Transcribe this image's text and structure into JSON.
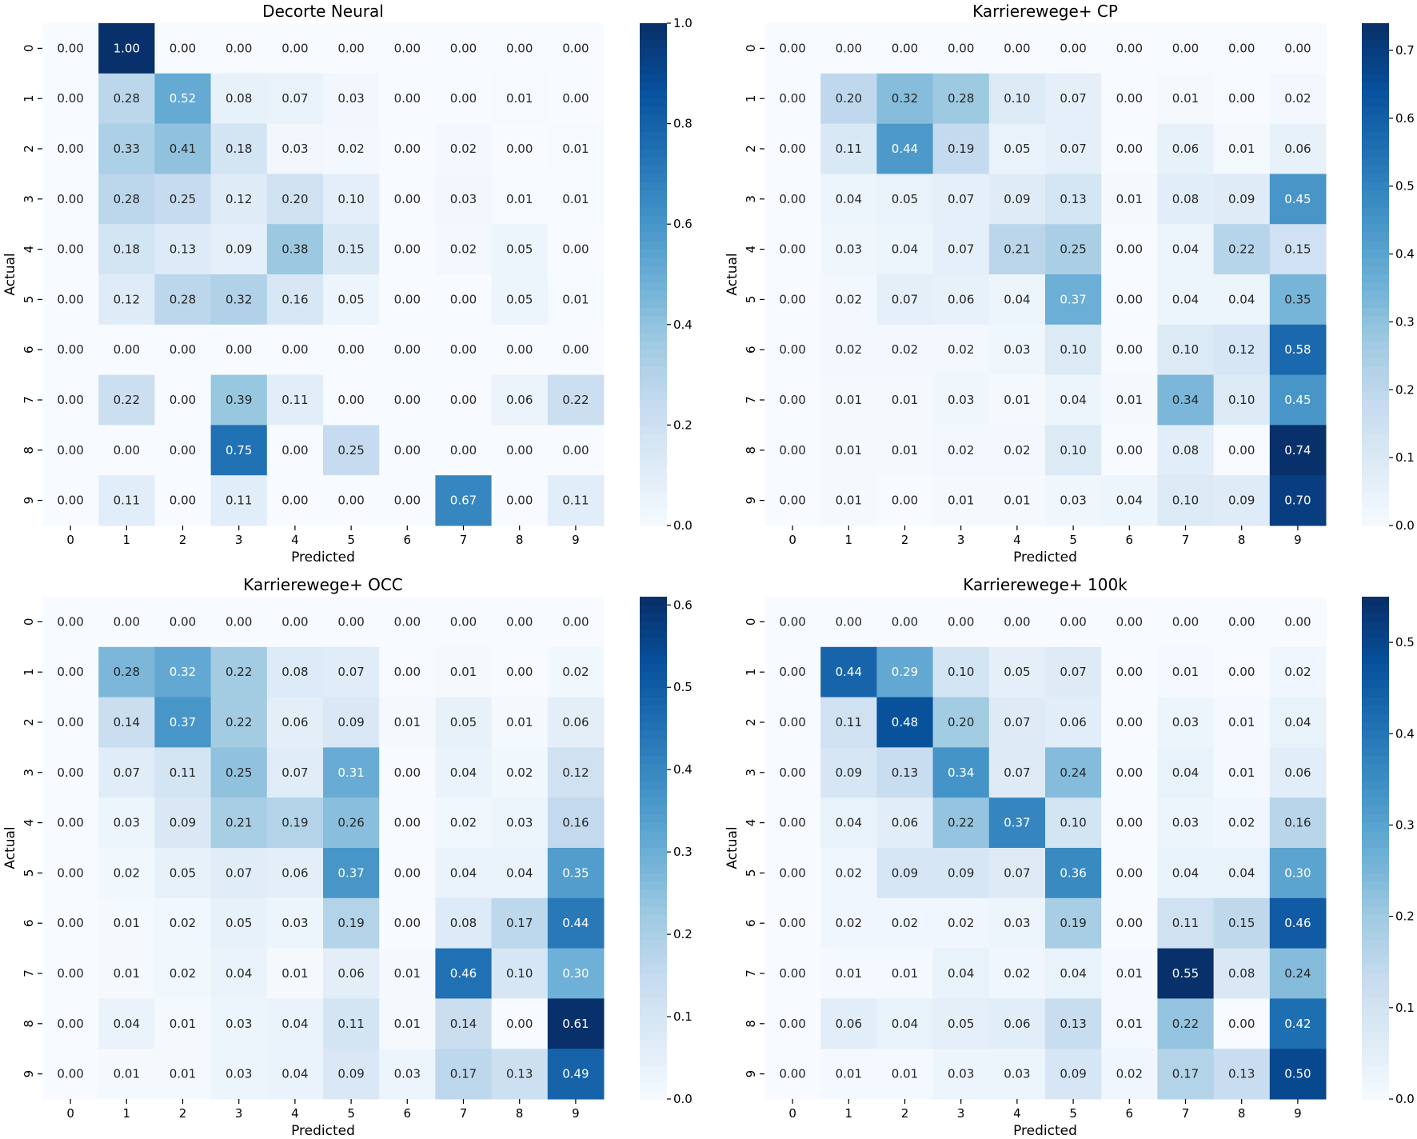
{
  "chart_data": [
    {
      "type": "heatmap",
      "title": "Decorte Neural",
      "xlabel": "Predicted",
      "ylabel": "Actual",
      "x_ticks": [
        "0",
        "1",
        "2",
        "3",
        "4",
        "5",
        "6",
        "7",
        "8",
        "9"
      ],
      "y_ticks": [
        "0",
        "1",
        "2",
        "3",
        "4",
        "5",
        "6",
        "7",
        "8",
        "9"
      ],
      "colorbar": {
        "range": [
          0,
          1.0
        ],
        "ticks": [
          "0.0",
          "0.2",
          "0.4",
          "0.6",
          "0.8",
          "1.0"
        ]
      },
      "values": [
        [
          0.0,
          1.0,
          0.0,
          0.0,
          0.0,
          0.0,
          0.0,
          0.0,
          0.0,
          0.0
        ],
        [
          0.0,
          0.28,
          0.52,
          0.08,
          0.07,
          0.03,
          0.0,
          0.0,
          0.01,
          0.0
        ],
        [
          0.0,
          0.33,
          0.41,
          0.18,
          0.03,
          0.02,
          0.0,
          0.02,
          0.0,
          0.01
        ],
        [
          0.0,
          0.28,
          0.25,
          0.12,
          0.2,
          0.1,
          0.0,
          0.03,
          0.01,
          0.01
        ],
        [
          0.0,
          0.18,
          0.13,
          0.09,
          0.38,
          0.15,
          0.0,
          0.02,
          0.05,
          0.0
        ],
        [
          0.0,
          0.12,
          0.28,
          0.32,
          0.16,
          0.05,
          0.0,
          0.0,
          0.05,
          0.01
        ],
        [
          0.0,
          0.0,
          0.0,
          0.0,
          0.0,
          0.0,
          0.0,
          0.0,
          0.0,
          0.0
        ],
        [
          0.0,
          0.22,
          0.0,
          0.39,
          0.11,
          0.0,
          0.0,
          0.0,
          0.06,
          0.22
        ],
        [
          0.0,
          0.0,
          0.0,
          0.75,
          0.0,
          0.25,
          0.0,
          0.0,
          0.0,
          0.0
        ],
        [
          0.0,
          0.11,
          0.0,
          0.11,
          0.0,
          0.0,
          0.0,
          0.67,
          0.0,
          0.11
        ]
      ]
    },
    {
      "type": "heatmap",
      "title": "Karrierewege+ CP",
      "xlabel": "Predicted",
      "ylabel": "Actual",
      "x_ticks": [
        "0",
        "1",
        "2",
        "3",
        "4",
        "5",
        "6",
        "7",
        "8",
        "9"
      ],
      "y_ticks": [
        "0",
        "1",
        "2",
        "3",
        "4",
        "5",
        "6",
        "7",
        "8",
        "9"
      ],
      "colorbar": {
        "range": [
          0,
          0.74
        ],
        "ticks": [
          "0.0",
          "0.1",
          "0.2",
          "0.3",
          "0.4",
          "0.5",
          "0.6",
          "0.7"
        ]
      },
      "values": [
        [
          0.0,
          0.0,
          0.0,
          0.0,
          0.0,
          0.0,
          0.0,
          0.0,
          0.0,
          0.0
        ],
        [
          0.0,
          0.2,
          0.32,
          0.28,
          0.1,
          0.07,
          0.0,
          0.01,
          0.0,
          0.02
        ],
        [
          0.0,
          0.11,
          0.44,
          0.19,
          0.05,
          0.07,
          0.0,
          0.06,
          0.01,
          0.06
        ],
        [
          0.0,
          0.04,
          0.05,
          0.07,
          0.09,
          0.13,
          0.01,
          0.08,
          0.09,
          0.45
        ],
        [
          0.0,
          0.03,
          0.04,
          0.07,
          0.21,
          0.25,
          0.0,
          0.04,
          0.22,
          0.15
        ],
        [
          0.0,
          0.02,
          0.07,
          0.06,
          0.04,
          0.37,
          0.0,
          0.04,
          0.04,
          0.35
        ],
        [
          0.0,
          0.02,
          0.02,
          0.02,
          0.03,
          0.1,
          0.0,
          0.1,
          0.12,
          0.58
        ],
        [
          0.0,
          0.01,
          0.01,
          0.03,
          0.01,
          0.04,
          0.01,
          0.34,
          0.1,
          0.45
        ],
        [
          0.0,
          0.01,
          0.01,
          0.02,
          0.02,
          0.1,
          0.0,
          0.08,
          0.0,
          0.74
        ],
        [
          0.0,
          0.01,
          0.0,
          0.01,
          0.01,
          0.03,
          0.04,
          0.1,
          0.09,
          0.7
        ]
      ]
    },
    {
      "type": "heatmap",
      "title": "Karrierewege+ OCC",
      "xlabel": "Predicted",
      "ylabel": "Actual",
      "x_ticks": [
        "0",
        "1",
        "2",
        "3",
        "4",
        "5",
        "6",
        "7",
        "8",
        "9"
      ],
      "y_ticks": [
        "0",
        "1",
        "2",
        "3",
        "4",
        "5",
        "6",
        "7",
        "8",
        "9"
      ],
      "colorbar": {
        "range": [
          0,
          0.61
        ],
        "ticks": [
          "0.0",
          "0.1",
          "0.2",
          "0.3",
          "0.4",
          "0.5",
          "0.6"
        ]
      },
      "values": [
        [
          0.0,
          0.0,
          0.0,
          0.0,
          0.0,
          0.0,
          0.0,
          0.0,
          0.0,
          0.0
        ],
        [
          0.0,
          0.28,
          0.32,
          0.22,
          0.08,
          0.07,
          0.0,
          0.01,
          0.0,
          0.02
        ],
        [
          0.0,
          0.14,
          0.37,
          0.22,
          0.06,
          0.09,
          0.01,
          0.05,
          0.01,
          0.06
        ],
        [
          0.0,
          0.07,
          0.11,
          0.25,
          0.07,
          0.31,
          0.0,
          0.04,
          0.02,
          0.12
        ],
        [
          0.0,
          0.03,
          0.09,
          0.21,
          0.19,
          0.26,
          0.0,
          0.02,
          0.03,
          0.16
        ],
        [
          0.0,
          0.02,
          0.05,
          0.07,
          0.06,
          0.37,
          0.0,
          0.04,
          0.04,
          0.35
        ],
        [
          0.0,
          0.01,
          0.02,
          0.05,
          0.03,
          0.19,
          0.0,
          0.08,
          0.17,
          0.44
        ],
        [
          0.0,
          0.01,
          0.02,
          0.04,
          0.01,
          0.06,
          0.01,
          0.46,
          0.1,
          0.3
        ],
        [
          0.0,
          0.04,
          0.01,
          0.03,
          0.04,
          0.11,
          0.01,
          0.14,
          0.0,
          0.61
        ],
        [
          0.0,
          0.01,
          0.01,
          0.03,
          0.04,
          0.09,
          0.03,
          0.17,
          0.13,
          0.49
        ]
      ]
    },
    {
      "type": "heatmap",
      "title": "Karrierewege+ 100k",
      "xlabel": "Predicted",
      "ylabel": "Actual",
      "x_ticks": [
        "0",
        "1",
        "2",
        "3",
        "4",
        "5",
        "6",
        "7",
        "8",
        "9"
      ],
      "y_ticks": [
        "0",
        "1",
        "2",
        "3",
        "4",
        "5",
        "6",
        "7",
        "8",
        "9"
      ],
      "colorbar": {
        "range": [
          0,
          0.55
        ],
        "ticks": [
          "0.0",
          "0.1",
          "0.2",
          "0.3",
          "0.4",
          "0.5"
        ]
      },
      "values": [
        [
          0.0,
          0.0,
          0.0,
          0.0,
          0.0,
          0.0,
          0.0,
          0.0,
          0.0,
          0.0
        ],
        [
          0.0,
          0.44,
          0.29,
          0.1,
          0.05,
          0.07,
          0.0,
          0.01,
          0.0,
          0.02
        ],
        [
          0.0,
          0.11,
          0.48,
          0.2,
          0.07,
          0.06,
          0.0,
          0.03,
          0.01,
          0.04
        ],
        [
          0.0,
          0.09,
          0.13,
          0.34,
          0.07,
          0.24,
          0.0,
          0.04,
          0.01,
          0.06
        ],
        [
          0.0,
          0.04,
          0.06,
          0.22,
          0.37,
          0.1,
          0.0,
          0.03,
          0.02,
          0.16
        ],
        [
          0.0,
          0.02,
          0.09,
          0.09,
          0.07,
          0.36,
          0.0,
          0.04,
          0.04,
          0.3
        ],
        [
          0.0,
          0.02,
          0.02,
          0.02,
          0.03,
          0.19,
          0.0,
          0.11,
          0.15,
          0.46
        ],
        [
          0.0,
          0.01,
          0.01,
          0.04,
          0.02,
          0.04,
          0.01,
          0.55,
          0.08,
          0.24
        ],
        [
          0.0,
          0.06,
          0.04,
          0.05,
          0.06,
          0.13,
          0.01,
          0.22,
          0.0,
          0.42
        ],
        [
          0.0,
          0.01,
          0.01,
          0.03,
          0.03,
          0.09,
          0.02,
          0.17,
          0.13,
          0.5
        ]
      ]
    }
  ],
  "colormap": [
    "#f7fbff",
    "#deebf7",
    "#c6dbef",
    "#9ecae1",
    "#6baed6",
    "#4292c6",
    "#2171b5",
    "#08519c",
    "#08306b"
  ]
}
